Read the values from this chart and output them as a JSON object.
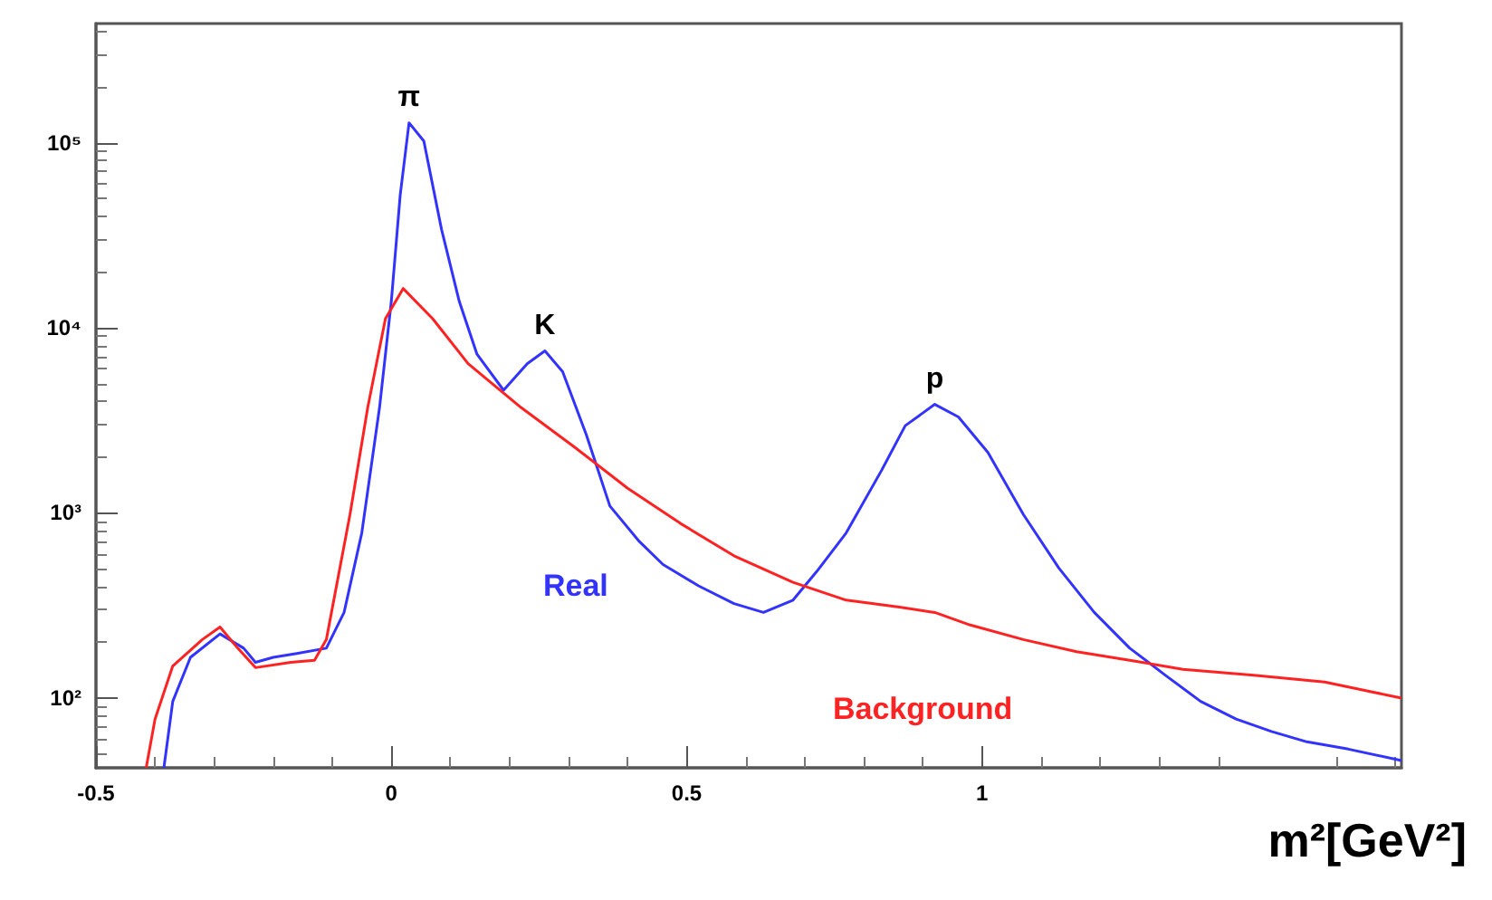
{
  "chart_data": {
    "type": "line",
    "xlabel": "m²[GeV²]",
    "xlim": [
      -0.5,
      1.71
    ],
    "xticks": [
      -0.5,
      0,
      0.5,
      1
    ],
    "ylim": [
      42,
      440000
    ],
    "yticks": [
      {
        "value": 100,
        "label": "10²"
      },
      {
        "value": 1000,
        "label": "10³"
      },
      {
        "value": 10000,
        "label": "10⁴"
      },
      {
        "value": 100000,
        "label": "10⁵"
      }
    ],
    "log": "y",
    "grid": false,
    "legend": false,
    "marker": "none",
    "line_style": "solid",
    "series": [
      {
        "name": "Real",
        "color": "#3333ff",
        "x": [
          -0.385,
          -0.37,
          -0.34,
          -0.29,
          -0.25,
          -0.23,
          -0.2,
          -0.16,
          -0.11,
          -0.08,
          -0.05,
          -0.02,
          0,
          0.015,
          0.03,
          0.055,
          0.085,
          0.115,
          0.145,
          0.19,
          0.23,
          0.26,
          0.29,
          0.33,
          0.37,
          0.42,
          0.46,
          0.52,
          0.58,
          0.63,
          0.68,
          0.72,
          0.77,
          0.83,
          0.87,
          0.92,
          0.96,
          1.01,
          1.07,
          1.13,
          1.19,
          1.25,
          1.31,
          1.37,
          1.43,
          1.49,
          1.55,
          1.62,
          1.71
        ],
        "values": [
          42,
          96,
          166,
          222,
          186,
          156,
          166,
          174,
          186,
          290,
          780,
          3700,
          13900,
          52000,
          128000,
          102000,
          34000,
          13900,
          7200,
          4600,
          6400,
          7500,
          5800,
          2650,
          1090,
          700,
          526,
          404,
          324,
          290,
          338,
          482,
          780,
          1700,
          2960,
          3860,
          3300,
          2120,
          980,
          504,
          290,
          186,
          133,
          96,
          77,
          66,
          58,
          53,
          46
        ]
      },
      {
        "name": "Background",
        "color": "#ff2222",
        "x": [
          -0.415,
          -0.4,
          -0.37,
          -0.32,
          -0.29,
          -0.26,
          -0.23,
          -0.17,
          -0.13,
          -0.11,
          -0.07,
          -0.04,
          -0.01,
          0.02,
          0.07,
          0.13,
          0.22,
          0.31,
          0.4,
          0.49,
          0.58,
          0.68,
          0.77,
          0.86,
          0.92,
          0.98,
          1.07,
          1.16,
          1.25,
          1.34,
          1.46,
          1.58,
          1.71
        ],
        "values": [
          42,
          77,
          149,
          207,
          242,
          186,
          146,
          156,
          160,
          207,
          980,
          3700,
          11200,
          16300,
          11200,
          6400,
          3700,
          2270,
          1360,
          875,
          587,
          422,
          338,
          310,
          290,
          248,
          207,
          178,
          160,
          143,
          133,
          122,
          100
        ]
      }
    ],
    "annotations": [
      {
        "text": "π",
        "x": 0.03,
        "y": 128000
      },
      {
        "text": "K",
        "x": 0.26,
        "y": 7500
      },
      {
        "text": "p",
        "x": 0.92,
        "y": 3860
      }
    ]
  }
}
